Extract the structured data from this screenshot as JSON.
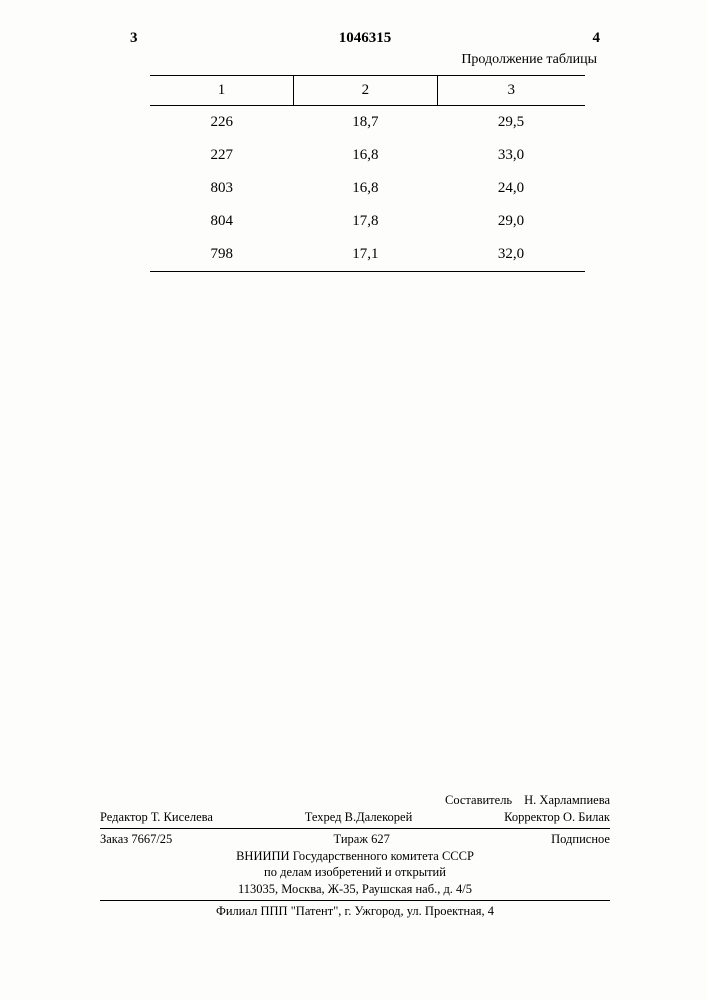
{
  "header": {
    "left_page_num": "3",
    "doc_number": "1046315",
    "right_page_num": "4"
  },
  "table": {
    "caption": "Продолжение таблицы",
    "columns": [
      "1",
      "2",
      "3"
    ],
    "rows": [
      [
        "226",
        "18,7",
        "29,5"
      ],
      [
        "227",
        "16,8",
        "33,0"
      ],
      [
        "803",
        "16,8",
        "24,0"
      ],
      [
        "804",
        "17,8",
        "29,0"
      ],
      [
        "798",
        "17,1",
        "32,0"
      ]
    ]
  },
  "footer": {
    "compiler_label": "Составитель",
    "compiler_name": "Н. Харлампиева",
    "editor_label": "Редактор",
    "editor_name": "Т. Киселева",
    "tehred_label": "Техред",
    "tehred_name": "В.Далекорей",
    "corrector_label": "Корректор",
    "corrector_name": "О. Билак",
    "order_label": "Заказ",
    "order_value": "7667/25",
    "tirazh_label": "Тираж",
    "tirazh_value": "627",
    "subscription": "Подписное",
    "org_line1": "ВНИИПИ Государственного комитета СССР",
    "org_line2": "по делам изобретений и открытий",
    "address": "113035, Москва, Ж-35, Раушская наб., д. 4/5",
    "branch": "Филиал ППП \"Патент\", г. Ужгород, ул. Проектная, 4"
  },
  "colors": {
    "text": "#000000",
    "background": "#fdfdfb"
  }
}
